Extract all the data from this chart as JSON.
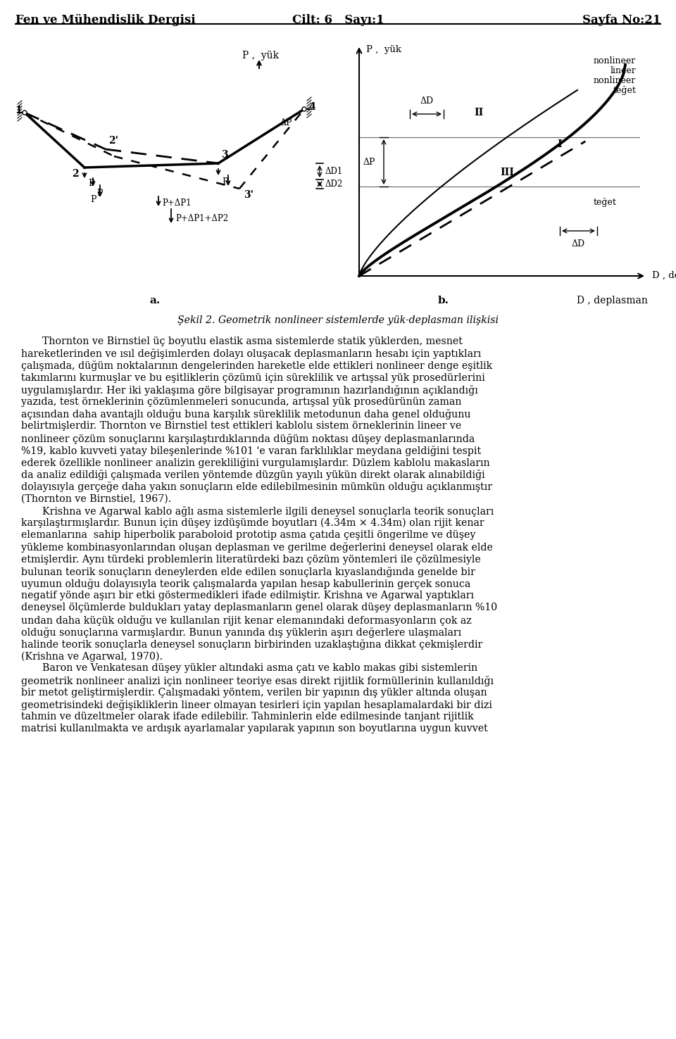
{
  "header_left": "Fen ve Mühendislik Dergisi",
  "header_center": "Cilt: 6   Sayı:1",
  "header_right": "Sayfa No:21",
  "figure_caption": "Şekil 2. Geometrik nonlineer sistemlerde yük-deplasman ilişkisi",
  "label_a": "a.",
  "label_b": "b.",
  "graph_b_xlabel": "D , deplasman",
  "graph_b_ylabel": "P , yük",
  "body_text": [
    "Thornton ve Birnstiel üç boyutlu elastik asma sistemlerde statik yüklerden, mesnet",
    "hareketlerinden ve ısıl değişimlerden dolayı oluşacak deplasmanların hesabı için yaptıkları",
    "çalışmada, düğüm noktalarının dengelerinden hareketle elde ettikleri nonlineer denge eşitlik",
    "takımlarını kurmuşlar ve bu eşitliklerin çözümü için süreklilik ve artışsal yük prosedürlerini",
    "uygulamışlardır. Her iki yaklaşıma göre bilgisayar programının hazırlandığının açıklandığı",
    "yazıda, test örneklerinin çözümlenmeleri sonucunda, artışsal yük prosedürünün zaman",
    "açısından daha avantajlı olduğu buna karşılık süreklilik metodunun daha genel olduğunu",
    "belirtmişlerdir. Thornton ve Birnstiel test ettikleri kablolu sistem örneklerinin lineer ve",
    "nonlineer çözüm sonuçlarını karşılaştırdıklarında düğüm noktası düşey deplasmanlarında",
    "%19, kablo kuvveti yatay bileşenlerinde %101 'e varan farklılıklar meydana geldiğini tespit",
    "ederek özellikle nonlineer analizin gerekliliğini vurgulamışlardır. Düzlem kablolu makasların",
    "da analiz edildiği çalışmada verilen yöntemde düzgün yayılı yükün direkt olarak alınabildiği",
    "dolayısıyla gerçeğe daha yakın sonuçların elde edilebilmesinin mümkün olduğu açıklanmıştır",
    "(Thornton ve Birnstiel, 1967).",
    "Krishna ve Agarwal kablo ağlı asma sistemlerle ilgili deneysel sonuçlarla teorik sonuçları",
    "karşılaştırmışlardır. Bunun için düşey izdüşümde boyutları (4.34m × 4.34m) olan rijit kenar",
    "elemanlarına  sahip hiperbolik paraboloid prototip asma çatıda çeşitli öngerilme ve düşey",
    "yükleme kombinasyonlarından oluşan deplasman ve gerilme değerlerini deneysel olarak elde",
    "etmişlerdir. Aynı türdeki problemlerin literatürdeki bazı çözüm yöntemleri ile çözülmesiyle",
    "bulunan teorik sonuçların deneylerden elde edilen sonuçlarla kıyaslandığında genelde bir",
    "uyumun olduğu dolayısıyla teorik çalışmalarda yapılan hesap kabullerinin gerçek sonuca",
    "negatif yönde aşırı bir etki göstermedikleri ifade edilmiştir. Krishna ve Agarwal yaptıkları",
    "deneysel ölçümlerde buldukları yatay deplasmanların genel olarak düşey deplasmanların %10",
    "undan daha küçük olduğu ve kullanılan rijit kenar elemanındaki deformasyonların çok az",
    "olduğu sonuçlarına varmışlardır. Bunun yanında dış yüklerin aşırı değerlere ulaşmaları",
    "halinde teorik sonuçlarla deneysel sonuçların birbirinden uzaklaştığına dikkat çekmişlerdir",
    "(Krishna ve Agarwal, 1970).",
    "Baron ve Venkatesan düşey yükler altındaki asma çatı ve kablo makas gibi sistemlerin",
    "geometrik nonlineer analizi için nonlineer teoriye esas direkt rijitlik formüllerinin kullanıldığı",
    "bir metot geliştirmişlerdir. Çalışmadaki yöntem, verilen bir yapının dış yükler altında oluşan",
    "geometrisindeki değişikliklerin lineer olmayan tesirleri için yapılan hesaplamalardaki bir dizi",
    "tahmin ve düzeltmeler olarak ifade edilebilir. Tahminlerin elde edilmesinde tanjant rijitlik",
    "matrisi kullanılmakta ve ardışık ayarlamalar yapılarak yapının son boyutlarına uygun kuvvet"
  ],
  "background_color": "#ffffff",
  "text_color": "#000000",
  "font_size_header": 12,
  "font_size_body": 10.2,
  "font_size_caption": 10.2,
  "para_starts": [
    0,
    14,
    27
  ]
}
